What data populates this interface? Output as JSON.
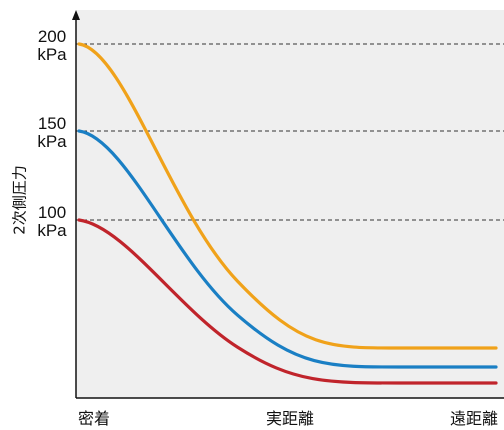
{
  "chart_data": {
    "type": "line",
    "title": "",
    "ylabel": "2次側圧力",
    "xlabel": "",
    "x_categories": [
      "密着",
      "実距離",
      "遠距離"
    ],
    "y_ticks": [
      {
        "value": 100,
        "line1": "100",
        "line2": "kPa"
      },
      {
        "value": 150,
        "line1": "150",
        "line2": "kPa"
      },
      {
        "value": 200,
        "line1": "200",
        "line2": "kPa"
      }
    ],
    "grid": "dashed horizontal at labeled ticks",
    "legend": "none",
    "ylim": [
      0,
      200
    ],
    "xlim": [
      0,
      2
    ],
    "series": [
      {
        "color": "#f0a21a",
        "start": 200,
        "end": 12
      },
      {
        "color": "#1a7fc4",
        "start": 150,
        "end": 2
      },
      {
        "color": "#c0242b",
        "start": 100,
        "end": -8
      }
    ],
    "x_samples": [
      0,
      0.2,
      0.4,
      0.6,
      0.8,
      1.0,
      1.2,
      1.4,
      1.6,
      1.8,
      2.0
    ]
  }
}
